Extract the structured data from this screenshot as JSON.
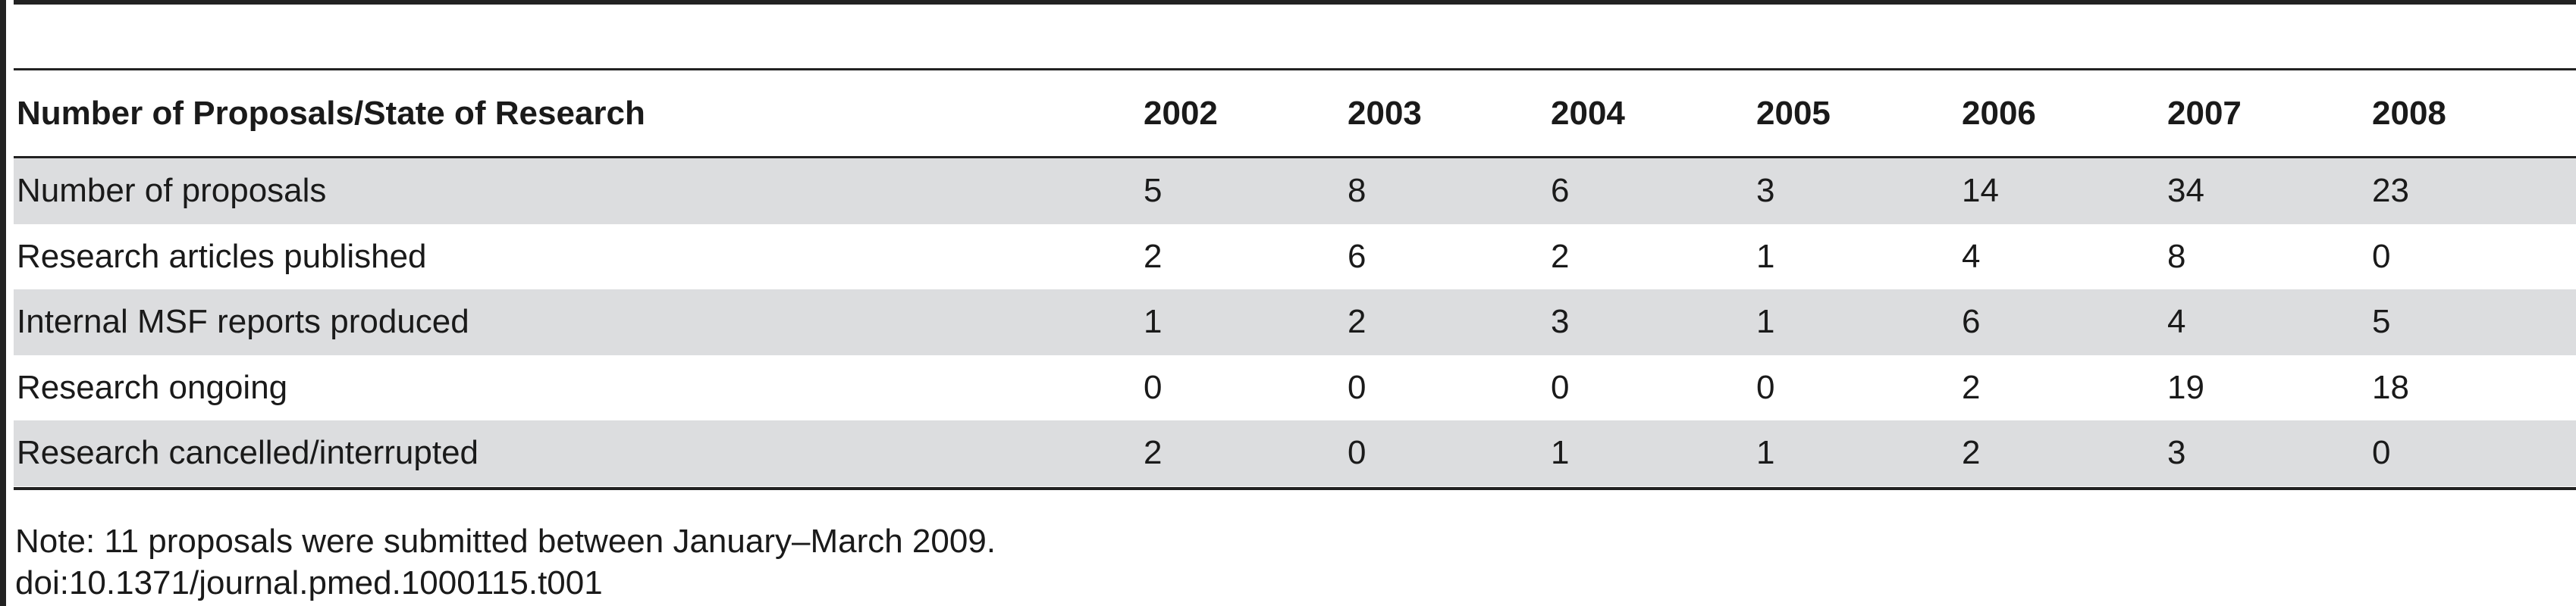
{
  "table": {
    "columns": [
      "Number of Proposals/State of Research",
      "2002",
      "2003",
      "2004",
      "2005",
      "2006",
      "2007",
      "2008"
    ],
    "rows": [
      [
        "Number of proposals",
        5,
        8,
        6,
        3,
        14,
        34,
        23
      ],
      [
        "Research articles published",
        2,
        6,
        2,
        1,
        4,
        8,
        0
      ],
      [
        "Internal MSF reports produced",
        1,
        2,
        3,
        1,
        6,
        4,
        5
      ],
      [
        "Research ongoing",
        0,
        0,
        0,
        0,
        2,
        19,
        18
      ],
      [
        "Research cancelled/interrupted",
        2,
        0,
        1,
        1,
        2,
        3,
        0
      ]
    ]
  },
  "footer": {
    "note": "Note: 11 proposals were submitted between January–March 2009.",
    "doi": "doi:10.1371/journal.pmed.1000115.t001"
  }
}
